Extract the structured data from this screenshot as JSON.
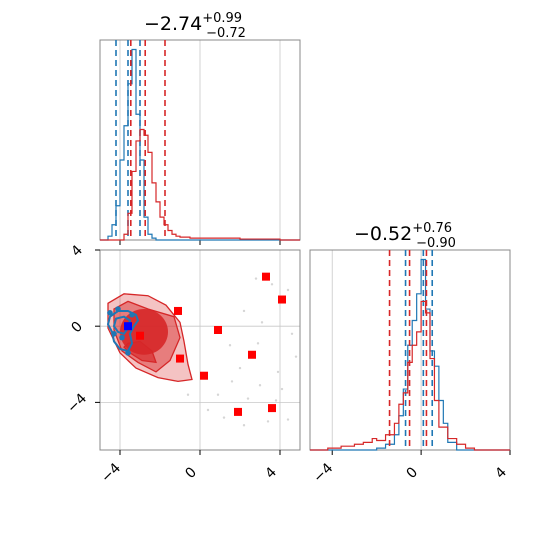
{
  "chart_data": {
    "type": "corner",
    "panels": [
      {
        "id": "hist-param-1",
        "type": "histogram",
        "title": {
          "median": "−2.74",
          "plus": "+0.99",
          "minus": "−0.72"
        },
        "xlim": [
          -5,
          5
        ],
        "series": [
          {
            "color": "#1f77b4",
            "bin_edges": [
              -5,
              -4.6,
              -4.4,
              -4.2,
              -4.0,
              -3.8,
              -3.6,
              -3.4,
              -3.2,
              -3.0,
              -2.8,
              -2.6,
              -2.4,
              -2.2,
              -2.0,
              5
            ],
            "counts": [
              0,
              0.02,
              0.08,
              0.18,
              0.42,
              0.6,
              0.82,
              1.0,
              0.66,
              0.42,
              0.12,
              0.03,
              0.01,
              0,
              0
            ],
            "quantiles": [
              -4.2,
              -3.6,
              -3.0
            ]
          },
          {
            "color": "#d62728",
            "bin_edges": [
              -5,
              -3.8,
              -3.6,
              -3.4,
              -3.2,
              -3.0,
              -2.8,
              -2.6,
              -2.4,
              -2.2,
              -2.0,
              -1.8,
              -1.6,
              -1.4,
              -1.2,
              -1.0,
              -0.5,
              0,
              1,
              2,
              3,
              4,
              5
            ],
            "counts": [
              0,
              0.03,
              0.14,
              0.36,
              0.52,
              0.58,
              0.55,
              0.46,
              0.3,
              0.2,
              0.12,
              0.08,
              0.05,
              0.03,
              0.02,
              0.015,
              0.01,
              0.01,
              0.01,
              0.005,
              0.005,
              0
            ],
            "quantiles": [
              -3.46,
              -2.74,
              -1.75
            ]
          }
        ]
      },
      {
        "id": "hist-param-2",
        "type": "histogram",
        "title": {
          "median": "−0.52",
          "plus": "+0.76",
          "minus": "−0.90"
        },
        "xlim": [
          -5,
          4
        ],
        "xticks": [
          -4,
          0,
          4
        ],
        "xtick_labels": [
          "−4",
          "0",
          "4"
        ],
        "series": [
          {
            "color": "#1f77b4",
            "bin_edges": [
              -5,
              -2.0,
              -1.6,
              -1.2,
              -1.0,
              -0.8,
              -0.6,
              -0.4,
              -0.2,
              0,
              0.2,
              0.4,
              0.6,
              0.8,
              1.0,
              1.2,
              1.6,
              4
            ],
            "counts": [
              0,
              0.01,
              0.03,
              0.08,
              0.18,
              0.32,
              0.55,
              0.68,
              0.82,
              1.0,
              0.74,
              0.52,
              0.44,
              0.26,
              0.14,
              0.04,
              0
            ],
            "quantiles": [
              -0.7,
              0.1,
              0.5
            ]
          },
          {
            "color": "#d62728",
            "bin_edges": [
              -5,
              -4.2,
              -3.6,
              -3.0,
              -2.6,
              -2.2,
              -2.0,
              -1.6,
              -1.2,
              -1.0,
              -0.8,
              -0.6,
              -0.4,
              -0.2,
              0,
              0.2,
              0.4,
              0.6,
              0.8,
              1.2,
              1.6,
              2.0,
              2.4,
              4
            ],
            "counts": [
              0,
              0.01,
              0.02,
              0.03,
              0.04,
              0.06,
              0.05,
              0.08,
              0.14,
              0.24,
              0.3,
              0.46,
              0.55,
              0.62,
              0.78,
              0.72,
              0.48,
              0.26,
              0.12,
              0.06,
              0.03,
              0.01,
              0
            ],
            "quantiles": [
              -1.42,
              -0.52,
              0.24
            ]
          }
        ]
      },
      {
        "id": "scatter-2d",
        "type": "contour-scatter",
        "xlim": [
          -5,
          5
        ],
        "ylim": [
          -6.5,
          4
        ],
        "xticks": [
          -4,
          0,
          4
        ],
        "xtick_labels": [
          "−4",
          "0",
          "4"
        ],
        "yticks": [
          -4,
          0,
          4
        ],
        "ytick_labels": [
          "−4",
          "0",
          "4"
        ],
        "red_contour": {
          "color": "#d62728",
          "levels": [
            [
              [
                -3.6,
                -0.9
              ],
              [
                -3.0,
                -0.8
              ],
              [
                -2.4,
                -1.3
              ],
              [
                -2.2,
                -1.9
              ],
              [
                -2.9,
                -1.8
              ],
              [
                -3.5,
                -1.4
              ],
              [
                -3.8,
                -1.1
              ]
            ],
            [
              [
                -4.3,
                -0.2
              ],
              [
                -4.3,
                0.9
              ],
              [
                -3.6,
                1.3
              ],
              [
                -2.6,
                0.9
              ],
              [
                -1.3,
                0.5
              ],
              [
                -1.0,
                -0.6
              ],
              [
                -1.5,
                -1.8
              ],
              [
                -2.2,
                -2.4
              ],
              [
                -3.1,
                -1.9
              ],
              [
                -3.9,
                -1.3
              ]
            ],
            [
              [
                -4.6,
                -0.1
              ],
              [
                -4.6,
                1.2
              ],
              [
                -3.8,
                1.7
              ],
              [
                -2.6,
                1.6
              ],
              [
                -1.7,
                1.1
              ],
              [
                -1.0,
                0.2
              ],
              [
                -0.8,
                -0.8
              ],
              [
                -0.6,
                -2.0
              ],
              [
                -0.4,
                -2.8
              ],
              [
                -1.1,
                -2.9
              ],
              [
                -2.1,
                -2.7
              ],
              [
                -3.2,
                -2.2
              ],
              [
                -4.0,
                -1.4
              ]
            ]
          ],
          "core": {
            "cx": -2.8,
            "cy": -0.3,
            "rx": 1.2,
            "ry": 1.2
          }
        },
        "blue_contour": {
          "color": "#1f77b4",
          "paths": [
            [
              [
                -4.5,
                0.5
              ],
              [
                -4.1,
                0.8
              ],
              [
                -3.6,
                0.8
              ],
              [
                -3.2,
                0.6
              ],
              [
                -3.1,
                0.3
              ],
              [
                -3.3,
                0.0
              ],
              [
                -3.5,
                -0.4
              ],
              [
                -3.4,
                -0.9
              ],
              [
                -3.6,
                -1.3
              ],
              [
                -4.0,
                -1.2
              ],
              [
                -4.3,
                -0.8
              ],
              [
                -4.4,
                -0.3
              ],
              [
                -4.6,
                0.1
              ]
            ],
            [
              [
                -4.2,
                0.4
              ],
              [
                -3.8,
                0.5
              ],
              [
                -3.5,
                0.3
              ],
              [
                -3.6,
                -0.1
              ],
              [
                -3.8,
                -0.4
              ],
              [
                -4.1,
                -0.3
              ],
              [
                -4.3,
                0.0
              ]
            ]
          ],
          "points": [
            [
              -4.5,
              0.7
            ],
            [
              -4.1,
              0.9
            ],
            [
              -3.4,
              0.6
            ],
            [
              -3.6,
              -1.4
            ],
            [
              -3.9,
              -0.6
            ],
            [
              -4.3,
              -0.4
            ]
          ]
        },
        "red_markers": [
          [
            -1.1,
            0.8
          ],
          [
            3.3,
            2.6
          ],
          [
            4.1,
            1.4
          ],
          [
            0.9,
            -0.2
          ],
          [
            -3.0,
            -0.5
          ],
          [
            -1.0,
            -1.7
          ],
          [
            2.6,
            -1.5
          ],
          [
            0.2,
            -2.6
          ],
          [
            1.9,
            -4.5
          ],
          [
            3.6,
            -4.3
          ]
        ],
        "blue_markers": [
          [
            -3.6,
            0.0
          ]
        ],
        "background_points": [
          [
            2.8,
            2.5
          ],
          [
            3.6,
            2.2
          ],
          [
            4.4,
            1.9
          ],
          [
            2.2,
            0.8
          ],
          [
            3.1,
            0.2
          ],
          [
            4.6,
            -0.4
          ],
          [
            1.5,
            -1.0
          ],
          [
            2.0,
            -2.2
          ],
          [
            3.0,
            -3.1
          ],
          [
            4.1,
            -3.3
          ],
          [
            0.9,
            -3.6
          ],
          [
            2.4,
            -3.8
          ],
          [
            3.8,
            -3.9
          ],
          [
            1.2,
            -4.8
          ],
          [
            2.2,
            -5.2
          ],
          [
            3.4,
            -5.0
          ],
          [
            4.4,
            -4.9
          ],
          [
            0.4,
            -4.4
          ],
          [
            -0.6,
            -3.6
          ],
          [
            1.6,
            -2.9
          ],
          [
            3.9,
            -2.4
          ],
          [
            4.8,
            -1.6
          ],
          [
            2.9,
            -0.9
          ]
        ]
      }
    ]
  }
}
